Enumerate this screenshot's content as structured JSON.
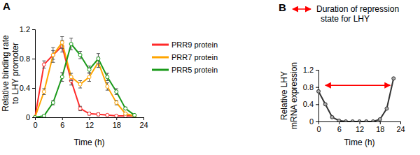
{
  "chart_data": [
    {
      "type": "line",
      "title": "A",
      "x": [
        0,
        2,
        4,
        6,
        8,
        10,
        12,
        14,
        16,
        18,
        20,
        22
      ],
      "xlim": [
        0,
        24
      ],
      "xticks": [
        0,
        6,
        12,
        18,
        24
      ],
      "ylim": [
        0,
        1.2
      ],
      "yticks": [
        0,
        0.4,
        0.8,
        1.2
      ],
      "xlabel": "Time (h)",
      "ylabel": [
        "Relative binding rate",
        "to LHY promoter"
      ],
      "legend": "right",
      "series": [
        {
          "name": "PRR9 protein",
          "color": "#ff2a2a",
          "marker": "circle",
          "values": [
            0,
            0.72,
            0.85,
            0.97,
            0.5,
            0.12,
            0.05,
            0.04,
            0.03,
            0.02,
            0.02,
            0.02
          ],
          "errors": [
            0,
            0.05,
            0.06,
            0.08,
            0.06,
            0.03,
            0.02,
            0.02,
            0.01,
            0.01,
            0.01,
            0.01
          ]
        },
        {
          "name": "PRR7 protein",
          "color": "#ffa500",
          "marker": "circle",
          "values": [
            0,
            0.35,
            0.85,
            1.02,
            0.55,
            0.45,
            0.55,
            0.75,
            0.42,
            0.2,
            0.05,
            0.02
          ],
          "errors": [
            0,
            0.04,
            0.1,
            0.08,
            0.05,
            0.05,
            0.06,
            0.07,
            0.05,
            0.03,
            0.02,
            0.01
          ]
        },
        {
          "name": "PRR5 protein",
          "color": "#1a9a1a",
          "marker": "circle",
          "values": [
            0,
            0.02,
            0.2,
            0.55,
            1.0,
            0.85,
            0.65,
            0.8,
            0.55,
            0.35,
            0.12,
            0.03
          ],
          "errors": [
            0,
            0.01,
            0.03,
            0.06,
            0.08,
            0.05,
            0.05,
            0.07,
            0.05,
            0.04,
            0.02,
            0.01
          ]
        }
      ]
    },
    {
      "type": "line",
      "title": "B",
      "x": [
        0,
        2,
        4,
        6,
        8,
        10,
        12,
        14,
        16,
        18,
        20,
        22
      ],
      "xlim": [
        0,
        24
      ],
      "xticks": [
        0,
        6,
        12,
        18,
        24
      ],
      "ylim": [
        0,
        1.2
      ],
      "yticks": [
        0,
        0.4,
        0.8,
        1.2
      ],
      "xlabel": "Time (h)",
      "ylabel": [
        "Relative LHY",
        "mRNA expression"
      ],
      "series": [
        {
          "color": "#333333",
          "marker": "circle",
          "values": [
            0.7,
            0.4,
            0.1,
            0.02,
            0,
            0,
            0,
            0,
            0,
            0.05,
            0.3,
            1.0
          ]
        }
      ],
      "annotation": {
        "text": [
          "Duration of repression",
          "state for LHY"
        ],
        "x_range": [
          2,
          21
        ]
      }
    }
  ]
}
